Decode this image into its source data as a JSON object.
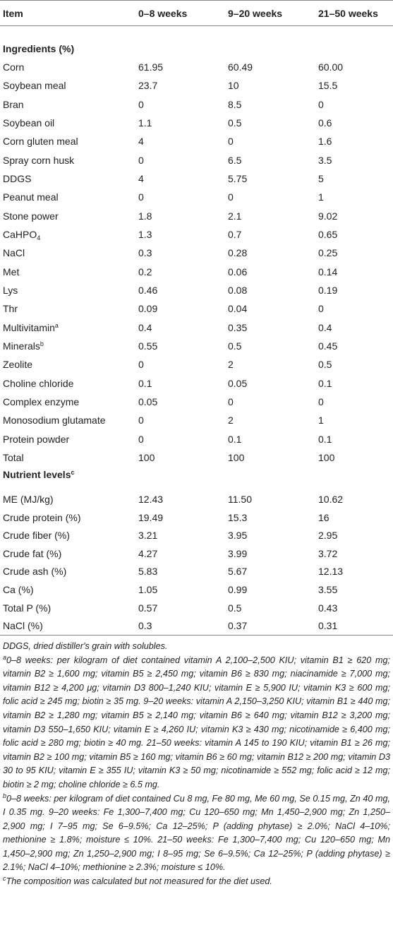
{
  "table": {
    "header": [
      "Item",
      "0–8 weeks",
      "9–20 weeks",
      "21–50 weeks"
    ],
    "sections": [
      {
        "title": "Ingredients (%)",
        "rows": [
          {
            "item": "Corn",
            "values": [
              "61.95",
              "60.49",
              "60.00"
            ]
          },
          {
            "item": "Soybean meal",
            "values": [
              "23.7",
              "10",
              "15.5"
            ]
          },
          {
            "item": "Bran",
            "values": [
              "0",
              "8.5",
              "0"
            ]
          },
          {
            "item": "Soybean oil",
            "values": [
              "1.1",
              "0.5",
              "0.6"
            ]
          },
          {
            "item": "Corn gluten meal",
            "values": [
              "4",
              "0",
              "1.6"
            ]
          },
          {
            "item": "Spray corn husk",
            "values": [
              "0",
              "6.5",
              "3.5"
            ]
          },
          {
            "item": "DDGS",
            "values": [
              "4",
              "5.75",
              "5"
            ]
          },
          {
            "item": "Peanut meal",
            "values": [
              "0",
              "0",
              "1"
            ]
          },
          {
            "item": "Stone power",
            "values": [
              "1.8",
              "2.1",
              "9.02"
            ]
          },
          {
            "item": "CaHPO",
            "sub": "4",
            "values": [
              "1.3",
              "0.7",
              "0.65"
            ]
          },
          {
            "item": "NaCl",
            "values": [
              "0.3",
              "0.28",
              "0.25"
            ]
          },
          {
            "item": "Met",
            "values": [
              "0.2",
              "0.06",
              "0.14"
            ]
          },
          {
            "item": "Lys",
            "values": [
              "0.46",
              "0.08",
              "0.19"
            ]
          },
          {
            "item": "Thr",
            "values": [
              "0.09",
              "0.04",
              "0"
            ]
          },
          {
            "item": "Multivitamin",
            "sup": "a",
            "values": [
              "0.4",
              "0.35",
              "0.4"
            ]
          },
          {
            "item": "Minerals",
            "sup": "b",
            "values": [
              "0.55",
              "0.5",
              "0.45"
            ]
          },
          {
            "item": "Zeolite",
            "values": [
              "0",
              "2",
              "0.5"
            ]
          },
          {
            "item": "Choline chloride",
            "values": [
              "0.1",
              "0.05",
              "0.1"
            ]
          },
          {
            "item": "Complex enzyme",
            "values": [
              "0.05",
              "0",
              "0"
            ]
          },
          {
            "item": "Monosodium glutamate",
            "values": [
              "0",
              "2",
              "1"
            ]
          },
          {
            "item": "Protein powder",
            "values": [
              "0",
              "0.1",
              "0.1"
            ]
          },
          {
            "item": "Total",
            "values": [
              "100",
              "100",
              "100"
            ]
          }
        ]
      },
      {
        "title": "Nutrient levels",
        "sup": "c",
        "rows": [
          {
            "item": "ME (MJ/kg)",
            "values": [
              "12.43",
              "11.50",
              "10.62"
            ]
          },
          {
            "item": "Crude protein (%)",
            "values": [
              "19.49",
              "15.3",
              "16"
            ]
          },
          {
            "item": "Crude fiber (%)",
            "values": [
              "3.21",
              "3.95",
              "2.95"
            ]
          },
          {
            "item": "Crude fat (%)",
            "values": [
              "4.27",
              "3.99",
              "3.72"
            ]
          },
          {
            "item": "Crude ash (%)",
            "values": [
              "5.83",
              "5.67",
              "12.13"
            ]
          },
          {
            "item": "Ca (%)",
            "values": [
              "1.05",
              "0.99",
              "3.55"
            ]
          },
          {
            "item": "Total P (%)",
            "values": [
              "0.57",
              "0.5",
              "0.43"
            ]
          },
          {
            "item": "NaCl (%)",
            "values": [
              "0.3",
              "0.37",
              "0.31"
            ]
          }
        ]
      }
    ],
    "footnotes": [
      {
        "text": "DDGS, dried distiller's grain with solubles."
      },
      {
        "mark": "a",
        "text": "0–8 weeks: per kilogram of diet contained vitamin A 2,100–2,500 KIU; vitamin B1 ≥ 620 mg; vitamin B2 ≥ 1,600 mg; vitamin B5 ≥ 2,450 mg; vitamin B6 ≥ 830 mg; niacinamide ≥ 7,000 mg; vitamin B12 ≥ 4,200 μg; vitamin D3 800–1,240 KIU; vitamin E ≥ 5,900 IU; vitamin K3 ≥ 600 mg; folic acid ≥ 245 mg; biotin ≥ 35 mg. 9–20 weeks: vitamin A 2,150–3,250 KIU; vitamin B1 ≥ 440 mg; vitamin B2 ≥ 1,280 mg; vitamin B5 ≥ 2,140 mg; vitamin B6 ≥ 640 mg; vitamin B12 ≥ 3,200 mg; vitamin D3 550–1,650 KIU; vitamin E ≥ 4,260 IU; vitamin K3 ≥ 430 mg; nicotinamide ≥ 6,400 mg; folic acid ≥ 280 mg; biotin ≥ 40 mg. 21–50 weeks: vitamin A 145 to 190 KIU; vitamin B1 ≥ 26 mg; vitamin B2 ≥ 100 mg; vitamin B5 ≥ 160 mg; vitamin B6 ≥ 60 mg; vitamin B12 ≥ 200 mg; vitamin D3 30 to 95 KIU; vitamin E ≥ 355 IU; vitamin K3 ≥ 50 mg; nicotinamide ≥ 552 mg; folic acid ≥ 12 mg; biotin ≥ 2 mg; choline chloride ≥ 6.5 mg."
      },
      {
        "mark": "b",
        "text": "0–8 weeks: per kilogram of diet contained Cu 8 mg, Fe 80 mg, Me 60 mg, Se 0.15 mg, Zn 40 mg, I 0.35 mg. 9–20 weeks: Fe 1,300–7,400 mg; Cu 120–650 mg; Mn 1,450–2,900 mg; Zn 1,250–2,900 mg; I 7–95 mg; Se 6–9.5%; Ca 12–25%; P (adding phytase) ≥ 2.0%; NaCl 4–10%; methionine ≥ 1.8%; moisture ≤ 10%. 21–50 weeks: Fe 1,300–7,400 mg; Cu 120–650 mg; Mn 1,450–2,900 mg; Zn 1,250–2,900 mg; I 8–95 mg; Se 6–9.5%; Ca 12–25%; P (adding phytase) ≥ 2.1%; NaCl 4–10%; methionine ≥ 2.3%; moisture ≤ 10%."
      },
      {
        "mark": "c",
        "text": "The composition was calculated but not measured for the diet used."
      }
    ]
  }
}
